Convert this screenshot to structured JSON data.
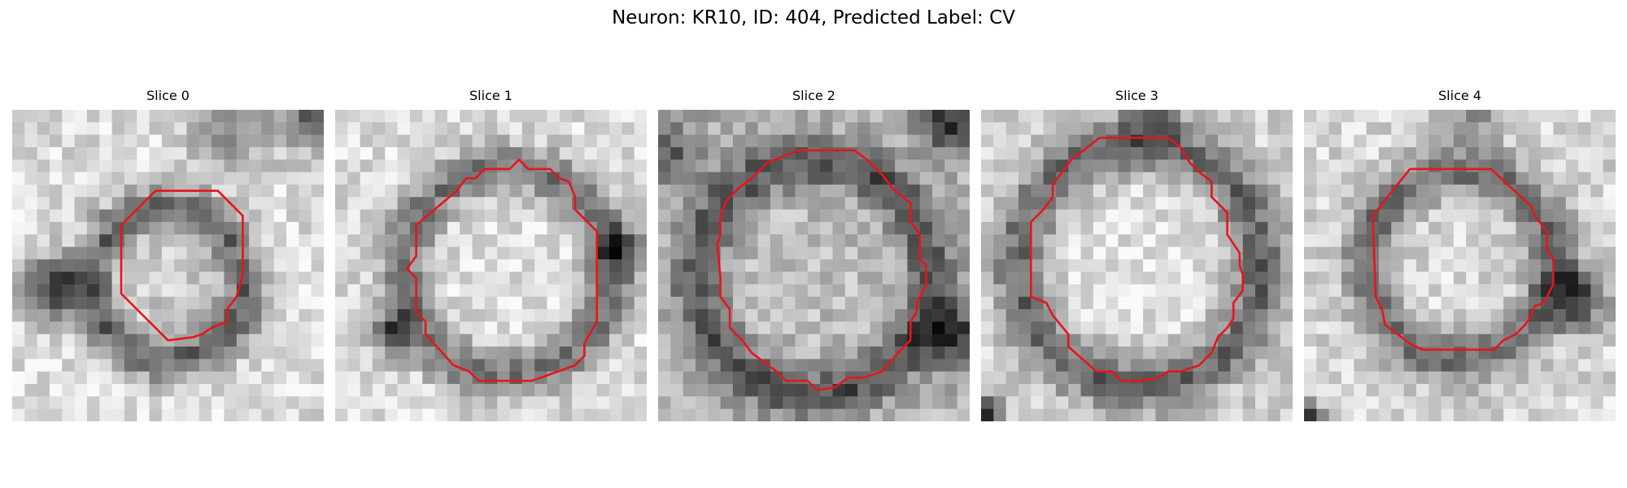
{
  "figure": {
    "title": "Neuron: KR10, ID: 404, Predicted Label: CV"
  },
  "colors": {
    "contour": "#e8141c",
    "background": "#ffffff"
  },
  "panels": [
    {
      "title": "Slice 0",
      "seed": 11,
      "center": [
        0.5,
        0.56
      ],
      "ring_radius": 0.25,
      "ring_width": 0.07,
      "ring_darkness": 0.42,
      "inner_brightness": 0.8,
      "outer_brightness": 0.86,
      "dark_blobs": [
        [
          0.13,
          0.58,
          0.1,
          0.6
        ],
        [
          0.96,
          0.03,
          0.1,
          0.45
        ],
        [
          0.7,
          0.06,
          0.12,
          0.35
        ]
      ],
      "contour": [
        [
          0.46,
          0.26
        ],
        [
          0.66,
          0.26
        ],
        [
          0.74,
          0.34
        ],
        [
          0.74,
          0.53
        ],
        [
          0.72,
          0.6
        ],
        [
          0.69,
          0.64
        ],
        [
          0.69,
          0.68
        ],
        [
          0.64,
          0.7
        ],
        [
          0.61,
          0.72
        ],
        [
          0.58,
          0.73
        ],
        [
          0.5,
          0.74
        ],
        [
          0.35,
          0.59
        ],
        [
          0.35,
          0.37
        ],
        [
          0.46,
          0.26
        ]
      ]
    },
    {
      "title": "Slice 1",
      "seed": 23,
      "center": [
        0.55,
        0.52
      ],
      "ring_radius": 0.33,
      "ring_width": 0.08,
      "ring_darkness": 0.4,
      "inner_brightness": 0.88,
      "outer_brightness": 0.86,
      "dark_blobs": [
        [
          0.18,
          0.72,
          0.07,
          0.55
        ],
        [
          0.92,
          0.45,
          0.09,
          0.4
        ]
      ],
      "contour": [
        [
          0.39,
          0.26
        ],
        [
          0.42,
          0.22
        ],
        [
          0.45,
          0.22
        ],
        [
          0.48,
          0.19
        ],
        [
          0.56,
          0.19
        ],
        [
          0.59,
          0.16
        ],
        [
          0.62,
          0.19
        ],
        [
          0.69,
          0.19
        ],
        [
          0.72,
          0.22
        ],
        [
          0.75,
          0.23
        ],
        [
          0.77,
          0.28
        ],
        [
          0.77,
          0.32
        ],
        [
          0.84,
          0.39
        ],
        [
          0.84,
          0.68
        ],
        [
          0.8,
          0.75
        ],
        [
          0.8,
          0.79
        ],
        [
          0.77,
          0.82
        ],
        [
          0.66,
          0.86
        ],
        [
          0.63,
          0.87
        ],
        [
          0.46,
          0.87
        ],
        [
          0.43,
          0.84
        ],
        [
          0.38,
          0.82
        ],
        [
          0.29,
          0.72
        ],
        [
          0.29,
          0.68
        ],
        [
          0.26,
          0.65
        ],
        [
          0.26,
          0.54
        ],
        [
          0.23,
          0.51
        ],
        [
          0.26,
          0.47
        ],
        [
          0.26,
          0.37
        ],
        [
          0.39,
          0.26
        ]
      ]
    },
    {
      "title": "Slice 2",
      "seed": 37,
      "center": [
        0.5,
        0.54
      ],
      "ring_radius": 0.37,
      "ring_width": 0.08,
      "ring_darkness": 0.4,
      "inner_brightness": 0.74,
      "outer_brightness": 0.7,
      "dark_blobs": [
        [
          0.93,
          0.05,
          0.09,
          0.55
        ],
        [
          0.04,
          0.14,
          0.1,
          0.35
        ],
        [
          0.95,
          0.72,
          0.1,
          0.45
        ]
      ],
      "contour": [
        [
          0.35,
          0.17
        ],
        [
          0.45,
          0.13
        ],
        [
          0.63,
          0.13
        ],
        [
          0.67,
          0.16
        ],
        [
          0.72,
          0.21
        ],
        [
          0.75,
          0.25
        ],
        [
          0.81,
          0.3
        ],
        [
          0.81,
          0.36
        ],
        [
          0.84,
          0.4
        ],
        [
          0.84,
          0.48
        ],
        [
          0.86,
          0.5
        ],
        [
          0.86,
          0.56
        ],
        [
          0.83,
          0.62
        ],
        [
          0.83,
          0.65
        ],
        [
          0.81,
          0.68
        ],
        [
          0.81,
          0.74
        ],
        [
          0.77,
          0.78
        ],
        [
          0.72,
          0.84
        ],
        [
          0.66,
          0.86
        ],
        [
          0.61,
          0.86
        ],
        [
          0.57,
          0.89
        ],
        [
          0.51,
          0.9
        ],
        [
          0.48,
          0.87
        ],
        [
          0.41,
          0.87
        ],
        [
          0.38,
          0.84
        ],
        [
          0.34,
          0.81
        ],
        [
          0.3,
          0.78
        ],
        [
          0.27,
          0.74
        ],
        [
          0.23,
          0.7
        ],
        [
          0.23,
          0.64
        ],
        [
          0.2,
          0.6
        ],
        [
          0.2,
          0.54
        ],
        [
          0.19,
          0.43
        ],
        [
          0.2,
          0.4
        ],
        [
          0.2,
          0.34
        ],
        [
          0.22,
          0.29
        ],
        [
          0.26,
          0.25
        ],
        [
          0.3,
          0.22
        ],
        [
          0.35,
          0.17
        ]
      ]
    },
    {
      "title": "Slice 3",
      "seed": 53,
      "center": [
        0.51,
        0.5
      ],
      "ring_radius": 0.38,
      "ring_width": 0.09,
      "ring_darkness": 0.44,
      "inner_brightness": 0.88,
      "outer_brightness": 0.82,
      "dark_blobs": [
        [
          0.02,
          0.98,
          0.05,
          0.7
        ],
        [
          0.55,
          0.02,
          0.09,
          0.3
        ]
      ],
      "contour": [
        [
          0.38,
          0.09
        ],
        [
          0.6,
          0.09
        ],
        [
          0.64,
          0.12
        ],
        [
          0.67,
          0.17
        ],
        [
          0.7,
          0.2
        ],
        [
          0.74,
          0.23
        ],
        [
          0.74,
          0.28
        ],
        [
          0.79,
          0.33
        ],
        [
          0.79,
          0.4
        ],
        [
          0.81,
          0.43
        ],
        [
          0.83,
          0.46
        ],
        [
          0.83,
          0.5
        ],
        [
          0.84,
          0.53
        ],
        [
          0.84,
          0.58
        ],
        [
          0.81,
          0.62
        ],
        [
          0.81,
          0.67
        ],
        [
          0.79,
          0.7
        ],
        [
          0.76,
          0.73
        ],
        [
          0.74,
          0.78
        ],
        [
          0.7,
          0.82
        ],
        [
          0.64,
          0.84
        ],
        [
          0.6,
          0.84
        ],
        [
          0.57,
          0.86
        ],
        [
          0.51,
          0.87
        ],
        [
          0.45,
          0.87
        ],
        [
          0.42,
          0.84
        ],
        [
          0.37,
          0.84
        ],
        [
          0.28,
          0.76
        ],
        [
          0.28,
          0.72
        ],
        [
          0.23,
          0.66
        ],
        [
          0.21,
          0.62
        ],
        [
          0.16,
          0.6
        ],
        [
          0.16,
          0.36
        ],
        [
          0.2,
          0.32
        ],
        [
          0.23,
          0.28
        ],
        [
          0.23,
          0.24
        ],
        [
          0.26,
          0.2
        ],
        [
          0.29,
          0.16
        ],
        [
          0.38,
          0.09
        ]
      ]
    },
    {
      "title": "Slice 4",
      "seed": 71,
      "center": [
        0.5,
        0.5
      ],
      "ring_radius": 0.3,
      "ring_width": 0.08,
      "ring_darkness": 0.42,
      "inner_brightness": 0.85,
      "outer_brightness": 0.84,
      "dark_blobs": [
        [
          0.88,
          0.6,
          0.1,
          0.55
        ],
        [
          0.54,
          0.03,
          0.08,
          0.35
        ],
        [
          0.02,
          0.98,
          0.04,
          0.6
        ]
      ],
      "contour": [
        [
          0.34,
          0.19
        ],
        [
          0.6,
          0.19
        ],
        [
          0.73,
          0.31
        ],
        [
          0.74,
          0.34
        ],
        [
          0.78,
          0.39
        ],
        [
          0.78,
          0.45
        ],
        [
          0.8,
          0.48
        ],
        [
          0.8,
          0.56
        ],
        [
          0.77,
          0.62
        ],
        [
          0.74,
          0.63
        ],
        [
          0.73,
          0.66
        ],
        [
          0.71,
          0.69
        ],
        [
          0.68,
          0.72
        ],
        [
          0.64,
          0.74
        ],
        [
          0.61,
          0.77
        ],
        [
          0.38,
          0.77
        ],
        [
          0.34,
          0.75
        ],
        [
          0.3,
          0.72
        ],
        [
          0.26,
          0.69
        ],
        [
          0.25,
          0.64
        ],
        [
          0.23,
          0.6
        ],
        [
          0.22,
          0.34
        ],
        [
          0.34,
          0.19
        ]
      ]
    }
  ]
}
